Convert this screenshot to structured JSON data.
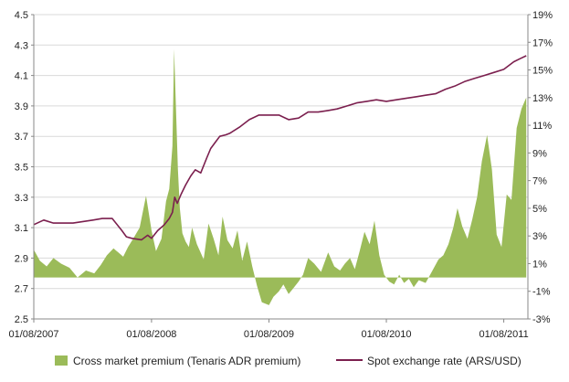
{
  "chart_data": {
    "type": "area",
    "x_ticks": [
      "01/08/2007",
      "01/08/2008",
      "01/08/2009",
      "01/08/2010",
      "01/08/2011"
    ],
    "x_range": [
      "2007-08-01",
      "2011-10-15"
    ],
    "y_left_ticks": [
      "2.5",
      "2.7",
      "2.9",
      "3.1",
      "3.3",
      "3.5",
      "3.7",
      "3.9",
      "4.1",
      "4.3",
      "4.5"
    ],
    "y_left_range": [
      2.5,
      4.5
    ],
    "y_right_ticks": [
      "-3%",
      "-1%",
      "1%",
      "3%",
      "5%",
      "7%",
      "9%",
      "11%",
      "13%",
      "15%",
      "17%",
      "19%"
    ],
    "y_right_range": [
      -3,
      19
    ],
    "grid": true,
    "legend_placement": "bottom",
    "colors": {
      "premium": "#9bbb59",
      "spot": "#7b1f4e",
      "grid": "#d9d9d9",
      "axis": "#888888"
    },
    "series": [
      {
        "name": "Cross market premium (Tenaris ADR premium)",
        "type": "area",
        "axis": "right",
        "x": [
          "2007-08-01",
          "2007-08-20",
          "2007-09-10",
          "2007-10-01",
          "2007-10-25",
          "2007-11-20",
          "2007-12-15",
          "2008-01-10",
          "2008-02-05",
          "2008-02-25",
          "2008-03-15",
          "2008-04-05",
          "2008-04-20",
          "2008-05-05",
          "2008-05-20",
          "2008-06-05",
          "2008-06-25",
          "2008-07-15",
          "2008-08-01",
          "2008-08-15",
          "2008-09-01",
          "2008-09-15",
          "2008-09-25",
          "2008-10-05",
          "2008-10-10",
          "2008-10-15",
          "2008-10-22",
          "2008-10-28",
          "2008-11-05",
          "2008-11-15",
          "2008-11-25",
          "2008-12-05",
          "2008-12-20",
          "2009-01-10",
          "2009-01-25",
          "2009-02-10",
          "2009-02-25",
          "2009-03-10",
          "2009-03-25",
          "2009-04-10",
          "2009-04-25",
          "2009-05-10",
          "2009-05-25",
          "2009-06-10",
          "2009-06-25",
          "2009-07-10",
          "2009-08-01",
          "2009-08-15",
          "2009-09-01",
          "2009-09-15",
          "2009-10-01",
          "2009-10-15",
          "2009-11-01",
          "2009-11-15",
          "2009-12-01",
          "2009-12-20",
          "2010-01-10",
          "2010-02-01",
          "2010-02-20",
          "2010-03-10",
          "2010-03-25",
          "2010-04-10",
          "2010-04-25",
          "2010-05-10",
          "2010-05-25",
          "2010-06-10",
          "2010-06-25",
          "2010-07-10",
          "2010-07-25",
          "2010-08-10",
          "2010-08-25",
          "2010-09-10",
          "2010-09-25",
          "2010-10-10",
          "2010-10-25",
          "2010-11-10",
          "2010-12-01",
          "2010-12-20",
          "2011-01-10",
          "2011-01-25",
          "2011-02-10",
          "2011-02-25",
          "2011-03-10",
          "2011-03-25",
          "2011-04-10",
          "2011-04-25",
          "2011-05-10",
          "2011-05-25",
          "2011-06-10",
          "2011-06-25",
          "2011-07-10",
          "2011-07-25",
          "2011-08-10",
          "2011-08-25",
          "2011-09-10",
          "2011-09-25",
          "2011-10-10"
        ],
        "values": [
          2.0,
          1.2,
          0.8,
          1.4,
          1.0,
          0.7,
          0.0,
          0.5,
          0.3,
          0.9,
          1.6,
          2.1,
          1.8,
          1.5,
          2.2,
          2.8,
          3.6,
          5.9,
          3.4,
          1.9,
          2.8,
          5.5,
          6.4,
          9.5,
          16.5,
          13.0,
          7.8,
          5.0,
          3.2,
          2.6,
          2.2,
          3.6,
          2.4,
          1.3,
          3.9,
          2.8,
          1.6,
          4.4,
          2.7,
          2.1,
          3.4,
          1.2,
          2.6,
          0.8,
          -0.6,
          -1.8,
          -2.0,
          -1.4,
          -1.0,
          -0.5,
          -1.2,
          -0.8,
          -0.3,
          0.2,
          1.4,
          1.0,
          0.4,
          1.8,
          0.8,
          0.5,
          1.0,
          1.4,
          0.6,
          1.9,
          3.3,
          2.4,
          4.1,
          1.6,
          0.2,
          -0.3,
          -0.5,
          0.2,
          -0.4,
          -0.1,
          -0.7,
          -0.2,
          -0.4,
          0.4,
          1.3,
          1.6,
          2.4,
          3.6,
          5.0,
          3.7,
          2.8,
          4.2,
          5.8,
          8.4,
          10.3,
          7.8,
          3.1,
          2.2,
          6.0,
          5.6,
          10.8,
          12.2,
          13.0
        ]
      },
      {
        "name": "Spot exchange rate (ARS/USD)",
        "type": "line",
        "axis": "left",
        "x": [
          "2007-08-01",
          "2007-09-01",
          "2007-10-01",
          "2007-11-01",
          "2007-12-01",
          "2008-01-01",
          "2008-02-01",
          "2008-03-01",
          "2008-04-01",
          "2008-05-01",
          "2008-05-15",
          "2008-06-01",
          "2008-07-01",
          "2008-07-20",
          "2008-08-01",
          "2008-08-20",
          "2008-09-10",
          "2008-09-25",
          "2008-10-05",
          "2008-10-12",
          "2008-10-20",
          "2008-11-01",
          "2008-11-15",
          "2008-12-01",
          "2008-12-15",
          "2009-01-01",
          "2009-01-20",
          "2009-02-01",
          "2009-02-15",
          "2009-03-01",
          "2009-03-20",
          "2009-04-01",
          "2009-05-01",
          "2009-06-01",
          "2009-07-01",
          "2009-08-01",
          "2009-09-01",
          "2009-10-01",
          "2009-11-01",
          "2009-12-01",
          "2010-01-01",
          "2010-02-01",
          "2010-03-01",
          "2010-04-01",
          "2010-05-01",
          "2010-06-01",
          "2010-07-01",
          "2010-08-01",
          "2010-09-01",
          "2010-10-01",
          "2010-11-01",
          "2010-12-01",
          "2011-01-01",
          "2011-02-01",
          "2011-03-01",
          "2011-04-01",
          "2011-05-01",
          "2011-06-01",
          "2011-07-01",
          "2011-08-01",
          "2011-09-01",
          "2011-09-20",
          "2011-10-10"
        ],
        "values": [
          3.12,
          3.15,
          3.13,
          3.13,
          3.13,
          3.14,
          3.15,
          3.16,
          3.16,
          3.08,
          3.04,
          3.03,
          3.02,
          3.05,
          3.03,
          3.08,
          3.12,
          3.16,
          3.2,
          3.3,
          3.26,
          3.32,
          3.38,
          3.44,
          3.48,
          3.46,
          3.56,
          3.62,
          3.66,
          3.7,
          3.71,
          3.72,
          3.76,
          3.81,
          3.84,
          3.84,
          3.84,
          3.81,
          3.82,
          3.86,
          3.86,
          3.87,
          3.88,
          3.9,
          3.92,
          3.93,
          3.94,
          3.93,
          3.94,
          3.95,
          3.96,
          3.97,
          3.98,
          4.01,
          4.03,
          4.06,
          4.08,
          4.1,
          4.12,
          4.14,
          4.19,
          4.21,
          4.23
        ]
      }
    ]
  }
}
